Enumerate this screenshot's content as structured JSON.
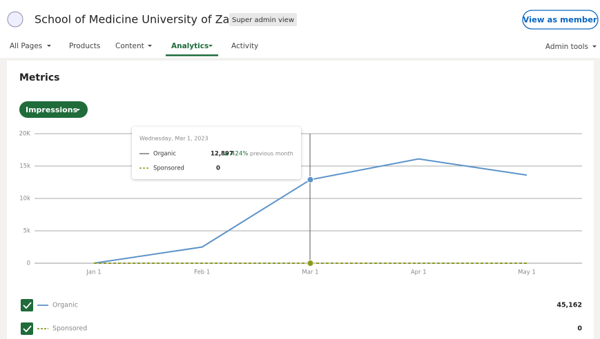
{
  "header": {
    "title": "School of Medicine University of Zagreb",
    "badge": "Super admin view",
    "button": "View as member"
  },
  "nav": {
    "items": [
      "All Pages",
      "Products",
      "Content",
      "Analytics",
      "Activity"
    ],
    "admin": "Admin tools"
  },
  "section_title": "Metrics",
  "metric_button": "Impressions",
  "chart_data": {
    "type": "line",
    "categories": [
      "Jan 1",
      "Feb 1",
      "Mar 1",
      "Apr 1",
      "May 1"
    ],
    "series": [
      {
        "name": "Organic",
        "color": "#5b93c9",
        "values": [
          0,
          2500,
          12897,
          16100,
          13600
        ]
      },
      {
        "name": "Sponsored",
        "color": "#8c9a1e",
        "dashed": true,
        "values": [
          0,
          0,
          0,
          0,
          0
        ]
      }
    ],
    "ylim": [
      0,
      20000
    ],
    "yticks": [
      0,
      {
        "value": 5000,
        "label": "5k"
      },
      {
        "value": 10000,
        "label": "10k"
      },
      {
        "value": 15000,
        "label": "15k"
      },
      {
        "value": 20000,
        "label": "20K"
      }
    ],
    "grid": true,
    "totals": [
      "45,162",
      "0"
    ],
    "tooltip": {
      "date": "Wednesday, Mar 1, 2023",
      "organic": "12,897",
      "change": "424%",
      "change_text": "previous month",
      "sponsored": "0"
    }
  }
}
